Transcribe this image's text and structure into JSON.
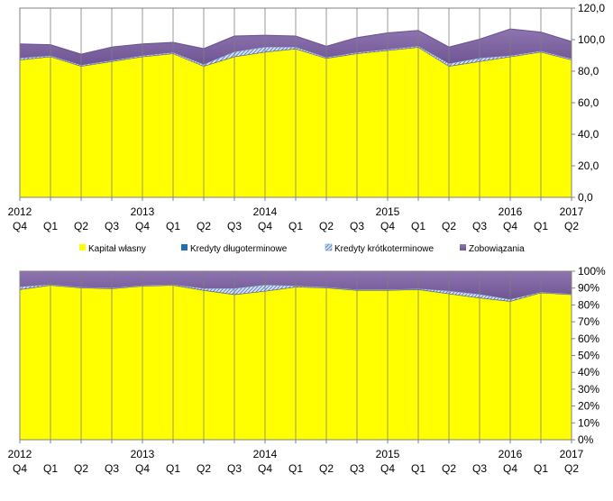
{
  "chart_data": [
    {
      "type": "area",
      "stacked": true,
      "percent": false,
      "x_quarters": [
        "Q4",
        "Q1",
        "Q2",
        "Q3",
        "Q4",
        "Q1",
        "Q2",
        "Q3",
        "Q4",
        "Q1",
        "Q2",
        "Q3",
        "Q4",
        "Q1",
        "Q2",
        "Q3",
        "Q4",
        "Q1",
        "Q2"
      ],
      "x_years": [
        {
          "label": "2012",
          "index": 0
        },
        {
          "label": "2013",
          "index": 4
        },
        {
          "label": "2014",
          "index": 8
        },
        {
          "label": "2015",
          "index": 12
        },
        {
          "label": "2016",
          "index": 16
        },
        {
          "label": "2017",
          "index": 18
        }
      ],
      "ylim": [
        0,
        120
      ],
      "yticks": [
        "0,0",
        "20,0",
        "40,0",
        "60,0",
        "80,0",
        "100,0",
        "120,0"
      ],
      "grid": "vertical",
      "legend_position": "bottom",
      "series": [
        {
          "name": "Kapitał własny",
          "color": "#FFFF00",
          "pattern": "solid",
          "values": [
            87,
            89,
            83,
            86,
            89,
            91,
            83,
            89,
            92,
            94,
            88,
            91,
            93,
            95,
            83,
            86,
            89,
            92,
            87
          ]
        },
        {
          "name": "Kredyty długoterminowe",
          "color": "#1F6FB2",
          "pattern": "solid",
          "values": [
            0.3,
            0.3,
            0.3,
            0.3,
            0.3,
            0.3,
            0.3,
            0.3,
            0.3,
            0.3,
            0.3,
            0.3,
            0.3,
            0.3,
            0.3,
            0.3,
            0.3,
            0.3,
            0.3
          ]
        },
        {
          "name": "Kredyty krótkoterminowe",
          "color": "#BFD3EE",
          "pattern": "hatch",
          "values": [
            1,
            0.5,
            0.5,
            0.5,
            0.5,
            0.5,
            1,
            3,
            3,
            1,
            0.5,
            0.5,
            0.5,
            0.5,
            1.5,
            2,
            0.5,
            0.5,
            0.5
          ]
        },
        {
          "name": "Zobowiązania",
          "color": "#8064A2",
          "pattern": "solid",
          "values": [
            9,
            7,
            7,
            8.5,
            7.5,
            6.5,
            10,
            10,
            7.5,
            7,
            7,
            9.5,
            10.5,
            10,
            10.5,
            12,
            17,
            12,
            11
          ]
        }
      ]
    },
    {
      "type": "area",
      "stacked": true,
      "percent": true,
      "x_quarters": [
        "Q4",
        "Q1",
        "Q2",
        "Q3",
        "Q4",
        "Q1",
        "Q2",
        "Q3",
        "Q4",
        "Q1",
        "Q2",
        "Q3",
        "Q4",
        "Q1",
        "Q2",
        "Q3",
        "Q4",
        "Q1",
        "Q2"
      ],
      "x_years": [
        {
          "label": "2012",
          "index": 0
        },
        {
          "label": "2013",
          "index": 4
        },
        {
          "label": "2014",
          "index": 8
        },
        {
          "label": "2015",
          "index": 12
        },
        {
          "label": "2016",
          "index": 16
        },
        {
          "label": "2017",
          "index": 18
        }
      ],
      "ylim": [
        0,
        100
      ],
      "yticks": [
        "0%",
        "10%",
        "20%",
        "30%",
        "40%",
        "50%",
        "60%",
        "70%",
        "80%",
        "90%",
        "100%"
      ],
      "grid": "vertical",
      "series": [
        {
          "name": "Kapitał własny",
          "color": "#FFFF00",
          "pattern": "solid",
          "values": [
            89,
            91.5,
            90,
            89.5,
            91,
            91.5,
            88.5,
            86,
            88,
            90.5,
            90,
            88.5,
            88.5,
            89,
            86.5,
            84,
            82,
            87,
            86
          ]
        },
        {
          "name": "Kredyty długoterminowe",
          "color": "#1F6FB2",
          "pattern": "solid",
          "values": [
            0.3,
            0.3,
            0.3,
            0.3,
            0.3,
            0.3,
            0.3,
            0.3,
            0.3,
            0.3,
            0.3,
            0.3,
            0.3,
            0.3,
            0.3,
            0.3,
            0.3,
            0.3,
            0.3
          ]
        },
        {
          "name": "Kredyty krótkoterminowe",
          "color": "#BFD3EE",
          "pattern": "hatch",
          "values": [
            1.5,
            0.3,
            0.3,
            0.3,
            0.3,
            0.3,
            1,
            3.5,
            3.5,
            0.5,
            0.3,
            0.3,
            0.3,
            0.3,
            1.5,
            2,
            1,
            0.3,
            0.3
          ]
        },
        {
          "name": "Zobowiązania",
          "color": "#8064A2",
          "pattern": "solid",
          "values": [
            9.2,
            7.9,
            9.4,
            9.9,
            8.4,
            7.9,
            10.2,
            10.2,
            8.2,
            8.7,
            9.4,
            10.9,
            10.9,
            10.4,
            11.7,
            13.7,
            16.7,
            12.4,
            13.4
          ]
        }
      ]
    }
  ]
}
